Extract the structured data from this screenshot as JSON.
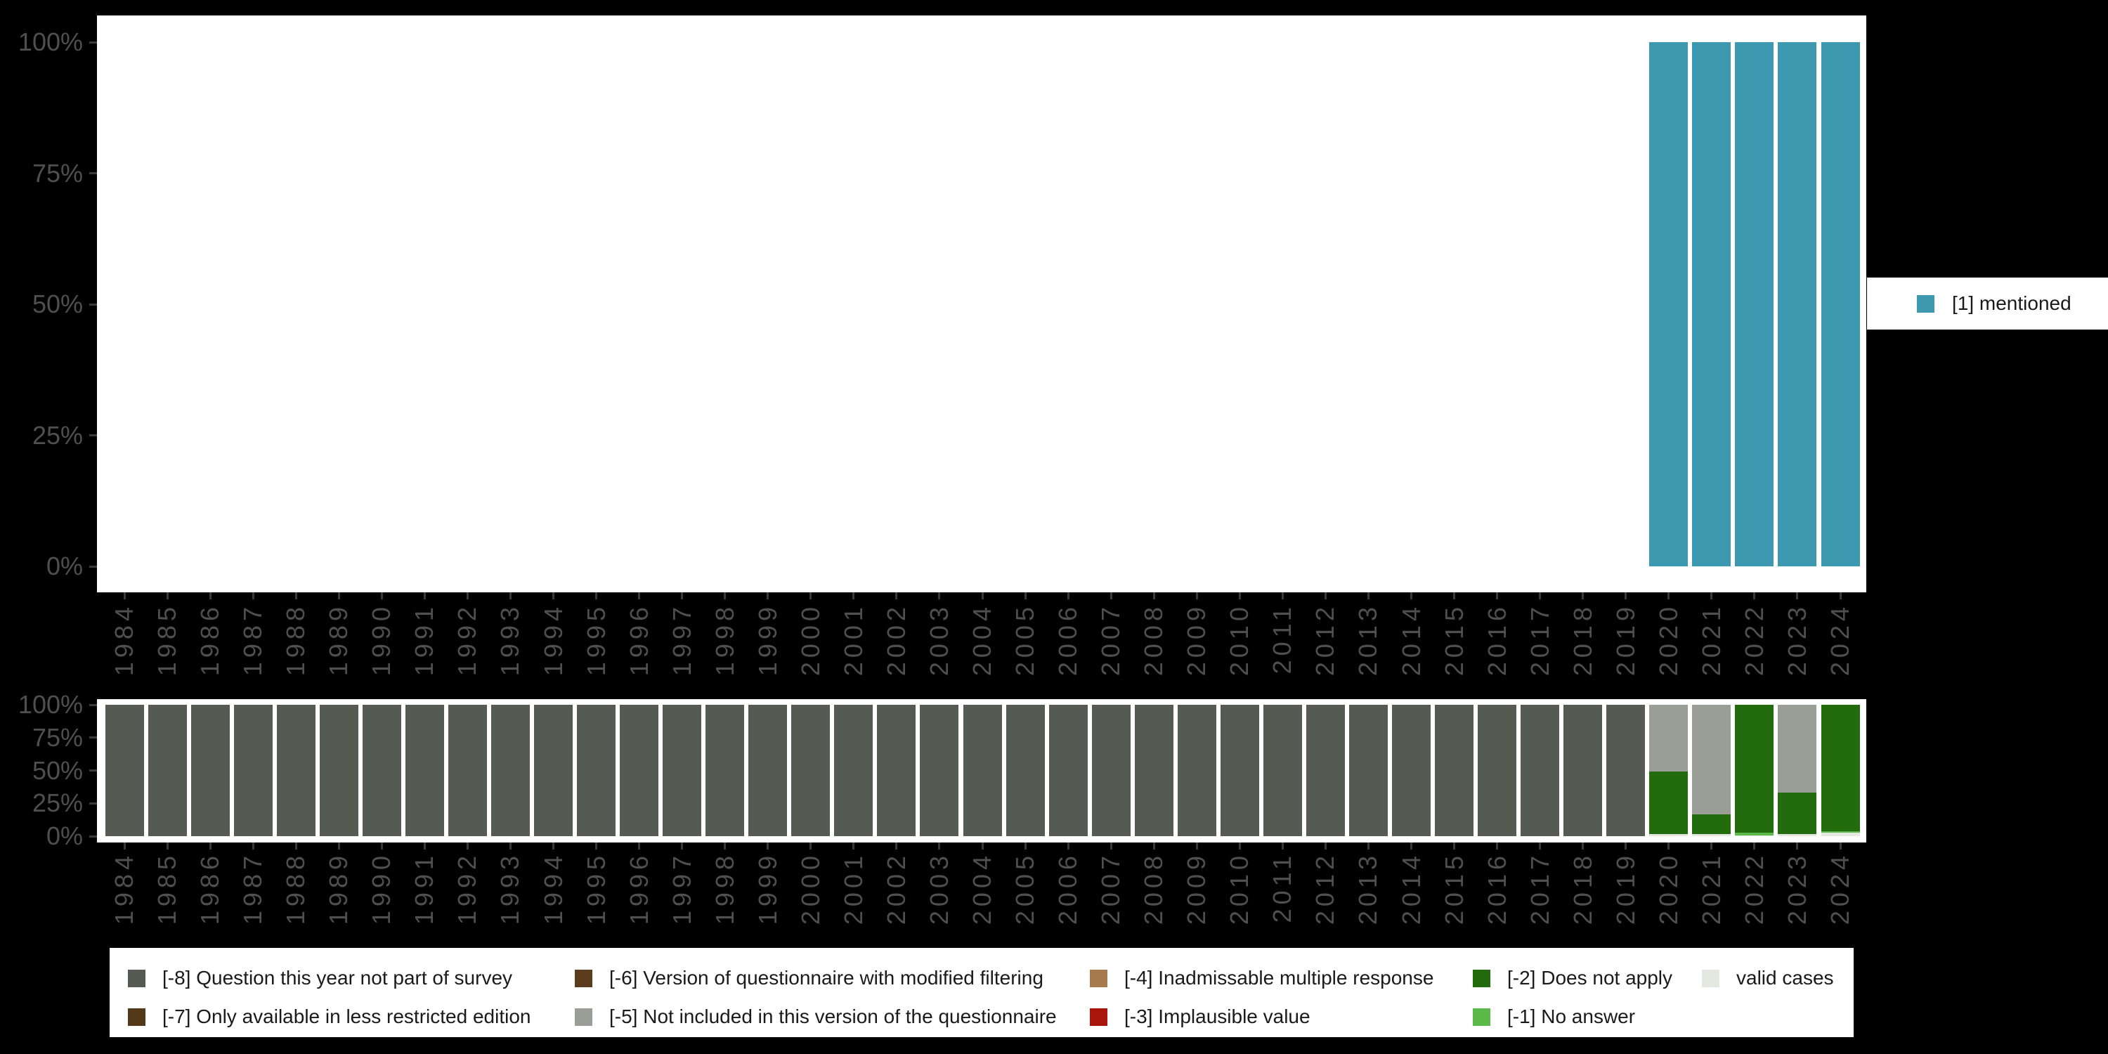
{
  "background_color": "#000000",
  "plot_background_color": "#ffffff",
  "axis": {
    "text_color": "#4f4f4f",
    "tick_color": "#3a3a3a",
    "y_tick_labels": [
      "100%",
      "75%",
      "50%",
      "25%",
      "0%"
    ]
  },
  "top_legend": {
    "swatch_color": "#3d99af",
    "label": "[1] mentioned"
  },
  "bottom_legend": {
    "items": [
      {
        "label": "[-8] Question this year not part of survey",
        "color": "#555b53"
      },
      {
        "label": "[-7] Only available in less restricted edition",
        "color": "#53381a"
      },
      {
        "label": "[-6] Version of questionnaire with modified filtering",
        "color": "#5b3d1e"
      },
      {
        "label": "[-5] Not included in this version of the questionnaire",
        "color": "#9a9e96"
      },
      {
        "label": "[-4] Inadmissable multiple response",
        "color": "#a67a4d"
      },
      {
        "label": "[-3] Implausible value",
        "color": "#aa150b"
      },
      {
        "label": "[-2] Does not apply",
        "color": "#236c0e"
      },
      {
        "label": "[-1] No answer",
        "color": "#5cba4a"
      },
      {
        "label": "valid cases",
        "color": "#e4e8e0"
      }
    ]
  },
  "chart_data": [
    {
      "type": "bar",
      "title": "",
      "xlabel": "",
      "ylabel": "",
      "ylim": [
        0,
        100
      ],
      "grid": false,
      "legend_position": "right",
      "x": [
        1984,
        1985,
        1986,
        1987,
        1988,
        1989,
        1990,
        1991,
        1992,
        1993,
        1994,
        1995,
        1996,
        1997,
        1998,
        1999,
        2000,
        2001,
        2002,
        2003,
        2004,
        2005,
        2006,
        2007,
        2008,
        2009,
        2010,
        2011,
        2012,
        2013,
        2014,
        2015,
        2016,
        2017,
        2018,
        2019,
        2020,
        2021,
        2022,
        2023,
        2024
      ],
      "y_axis": {
        "ticks": [
          {
            "label": "0%",
            "value": 0
          },
          {
            "label": "25%",
            "value": 25
          },
          {
            "label": "50%",
            "value": 50
          },
          {
            "label": "75%",
            "value": 75
          },
          {
            "label": "100%",
            "value": 100
          }
        ]
      },
      "series": [
        {
          "name": "[1] mentioned",
          "color": "#3d99af",
          "values": [
            0,
            0,
            0,
            0,
            0,
            0,
            0,
            0,
            0,
            0,
            0,
            0,
            0,
            0,
            0,
            0,
            0,
            0,
            0,
            0,
            0,
            0,
            0,
            0,
            0,
            0,
            0,
            0,
            0,
            0,
            0,
            0,
            0,
            0,
            0,
            0,
            100,
            100,
            100,
            100,
            100
          ]
        }
      ]
    },
    {
      "type": "bar-stacked",
      "title": "",
      "xlabel": "",
      "ylabel": "",
      "ylim": [
        0,
        100
      ],
      "grid": false,
      "legend_position": "bottom",
      "x": [
        1984,
        1985,
        1986,
        1987,
        1988,
        1989,
        1990,
        1991,
        1992,
        1993,
        1994,
        1995,
        1996,
        1997,
        1998,
        1999,
        2000,
        2001,
        2002,
        2003,
        2004,
        2005,
        2006,
        2007,
        2008,
        2009,
        2010,
        2011,
        2012,
        2013,
        2014,
        2015,
        2016,
        2017,
        2018,
        2019,
        2020,
        2021,
        2022,
        2023,
        2024
      ],
      "y_axis": {
        "ticks": [
          {
            "label": "0%",
            "value": 0
          },
          {
            "label": "25%",
            "value": 25
          },
          {
            "label": "50%",
            "value": 50
          },
          {
            "label": "75%",
            "value": 75
          },
          {
            "label": "100%",
            "value": 100
          }
        ]
      },
      "series": [
        {
          "name": "[-8] Question this year not part of survey",
          "color": "#555b53",
          "values": [
            100,
            100,
            100,
            100,
            100,
            100,
            100,
            100,
            100,
            100,
            100,
            100,
            100,
            100,
            100,
            100,
            100,
            100,
            100,
            100,
            100,
            100,
            100,
            100,
            100,
            100,
            100,
            100,
            100,
            100,
            100,
            100,
            100,
            100,
            100,
            100,
            0,
            0,
            0,
            0,
            0
          ]
        },
        {
          "name": "[-7] Only available in less restricted edition",
          "color": "#53381a",
          "values": [
            0,
            0,
            0,
            0,
            0,
            0,
            0,
            0,
            0,
            0,
            0,
            0,
            0,
            0,
            0,
            0,
            0,
            0,
            0,
            0,
            0,
            0,
            0,
            0,
            0,
            0,
            0,
            0,
            0,
            0,
            0,
            0,
            0,
            0,
            0,
            0,
            0,
            0,
            0,
            0,
            0
          ]
        },
        {
          "name": "[-6] Version of questionnaire with modified filtering",
          "color": "#5b3d1e",
          "values": [
            0,
            0,
            0,
            0,
            0,
            0,
            0,
            0,
            0,
            0,
            0,
            0,
            0,
            0,
            0,
            0,
            0,
            0,
            0,
            0,
            0,
            0,
            0,
            0,
            0,
            0,
            0,
            0,
            0,
            0,
            0,
            0,
            0,
            0,
            0,
            0,
            0,
            0,
            0,
            0,
            0
          ]
        },
        {
          "name": "[-5] Not included in this version of the questionnaire",
          "color": "#9a9e96",
          "values": [
            0,
            0,
            0,
            0,
            0,
            0,
            0,
            0,
            0,
            0,
            0,
            0,
            0,
            0,
            0,
            0,
            0,
            0,
            0,
            0,
            0,
            0,
            0,
            0,
            0,
            0,
            0,
            0,
            0,
            0,
            0,
            0,
            0,
            0,
            0,
            0,
            50.8,
            83.4,
            0,
            66.7,
            0
          ]
        },
        {
          "name": "[-4] Inadmissable multiple response",
          "color": "#a67a4d",
          "values": [
            0,
            0,
            0,
            0,
            0,
            0,
            0,
            0,
            0,
            0,
            0,
            0,
            0,
            0,
            0,
            0,
            0,
            0,
            0,
            0,
            0,
            0,
            0,
            0,
            0,
            0,
            0,
            0,
            0,
            0,
            0,
            0,
            0,
            0,
            0,
            0,
            0,
            0,
            0,
            0,
            0
          ]
        },
        {
          "name": "[-3] Implausible value",
          "color": "#aa150b",
          "values": [
            0,
            0,
            0,
            0,
            0,
            0,
            0,
            0,
            0,
            0,
            0,
            0,
            0,
            0,
            0,
            0,
            0,
            0,
            0,
            0,
            0,
            0,
            0,
            0,
            0,
            0,
            0,
            0,
            0,
            0,
            0,
            0,
            0,
            0,
            0,
            0,
            0,
            0,
            0,
            0,
            0
          ]
        },
        {
          "name": "[-2] Does not apply",
          "color": "#236c0e",
          "values": [
            0,
            0,
            0,
            0,
            0,
            0,
            0,
            0,
            0,
            0,
            0,
            0,
            0,
            0,
            0,
            0,
            0,
            0,
            0,
            0,
            0,
            0,
            0,
            0,
            0,
            0,
            0,
            0,
            0,
            0,
            0,
            0,
            0,
            0,
            0,
            0,
            47.6,
            15,
            97.3,
            31.5,
            96.1
          ]
        },
        {
          "name": "[-1] No answer",
          "color": "#5cba4a",
          "values": [
            0,
            0,
            0,
            0,
            0,
            0,
            0,
            0,
            0,
            0,
            0,
            0,
            0,
            0,
            0,
            0,
            0,
            0,
            0,
            0,
            0,
            0,
            0,
            0,
            0,
            0,
            0,
            0,
            0,
            0,
            0,
            0,
            0,
            0,
            0,
            0,
            0,
            0,
            2.2,
            0,
            1.2
          ]
        },
        {
          "name": "valid cases",
          "color": "#e4e8e0",
          "values": [
            0,
            0,
            0,
            0,
            0,
            0,
            0,
            0,
            0,
            0,
            0,
            0,
            0,
            0,
            0,
            0,
            0,
            0,
            0,
            0,
            0,
            0,
            0,
            0,
            0,
            0,
            0,
            0,
            0,
            0,
            0,
            0,
            0,
            0,
            0,
            0,
            1.6,
            1.6,
            0.5,
            1.8,
            2.7
          ]
        }
      ]
    }
  ]
}
